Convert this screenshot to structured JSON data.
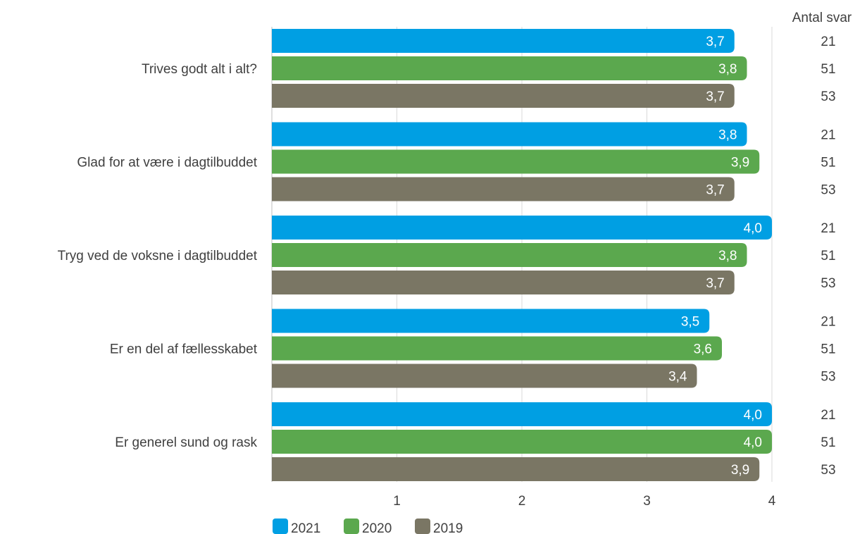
{
  "chart_data": {
    "type": "bar",
    "orientation": "horizontal",
    "categories": [
      "Trives godt alt i alt?",
      "Glad for at være i dagtilbuddet",
      "Tryg ved de voksne i dagtilbuddet",
      "Er en del af fællesskabet",
      "Er generel sund og rask"
    ],
    "series": [
      {
        "name": "2021",
        "color": "#009FE3",
        "values": [
          3.7,
          3.8,
          4.0,
          3.5,
          4.0
        ],
        "labels": [
          "3,7",
          "3,8",
          "4,0",
          "3,5",
          "4,0"
        ],
        "answers": [
          "21",
          "21",
          "21",
          "21",
          "21"
        ]
      },
      {
        "name": "2020",
        "color": "#5BA84E",
        "values": [
          3.8,
          3.9,
          3.8,
          3.6,
          4.0
        ],
        "labels": [
          "3,8",
          "3,9",
          "3,8",
          "3,6",
          "4,0"
        ],
        "answers": [
          "51",
          "51",
          "51",
          "51",
          "51"
        ]
      },
      {
        "name": "2019",
        "color": "#7A7664",
        "values": [
          3.7,
          3.7,
          3.7,
          3.4,
          3.9
        ],
        "labels": [
          "3,7",
          "3,7",
          "3,7",
          "3,4",
          "3,9"
        ],
        "answers": [
          "53",
          "53",
          "53",
          "53",
          "53"
        ]
      }
    ],
    "xlim": [
      0,
      4
    ],
    "xticks": [
      1,
      2,
      3,
      4
    ],
    "xtick_labels": [
      "1",
      "2",
      "3",
      "4"
    ],
    "grid": "vertical",
    "legend_position": "bottom-left",
    "answers_header": "Antal svar"
  }
}
